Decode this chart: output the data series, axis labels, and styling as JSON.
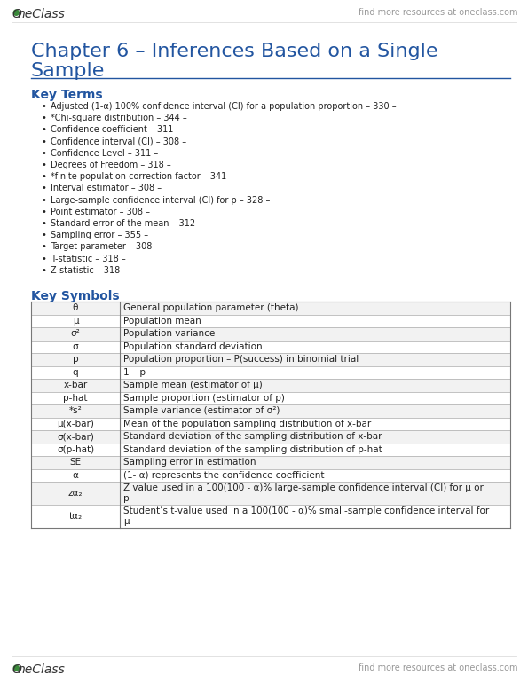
{
  "bg_color": "#ffffff",
  "header_text_left": "OneClass",
  "header_text_right": "find more resources at oneclass.com",
  "footer_text_left": "OneClass",
  "footer_text_right": "find more resources at oneclass.com",
  "section1_title": "Key Terms",
  "bullet_items": [
    "Adjusted (1-α) 100% confidence interval (CI) for a population proportion – 330 –",
    "*Chi-square distribution – 344 –",
    "Confidence coefficient – 311 –",
    "Confidence interval (CI) – 308 –",
    "Confidence Level – 311 –",
    "Degrees of Freedom – 318 –",
    "*finite population correction factor – 341 –",
    "Interval estimator – 308 –",
    "Large-sample confidence interval (CI) for p – 328 –",
    "Point estimator – 308 –",
    "Standard error of the mean – 312 –",
    "Sampling error – 355 –",
    "Target parameter – 308 –",
    "T-statistic – 318 –",
    "Z-statistic – 318 –"
  ],
  "section2_title": "Key Symbols",
  "table_rows": [
    [
      "θ",
      "General population parameter (theta)",
      1
    ],
    [
      "μ",
      "Population mean",
      1
    ],
    [
      "σ²",
      "Population variance",
      1
    ],
    [
      "σ",
      "Population standard deviation",
      1
    ],
    [
      "p",
      "Population proportion – P(success) in binomial trial",
      1
    ],
    [
      "q",
      "1 – p",
      1
    ],
    [
      "x-bar",
      "Sample mean (estimator of μ)",
      1
    ],
    [
      "p-hat",
      "Sample proportion (estimator of p)",
      1
    ],
    [
      "*s²",
      "Sample variance (estimator of σ²)",
      1
    ],
    [
      "μ(x-bar)",
      "Mean of the population sampling distribution of x-bar",
      1
    ],
    [
      "σ(x-bar)",
      "Standard deviation of the sampling distribution of x-bar",
      1
    ],
    [
      "σ(p-hat)",
      "Standard deviation of the sampling distribution of p-hat",
      1
    ],
    [
      "SE",
      "Sampling error in estimation",
      1
    ],
    [
      "α",
      "(1- α) represents the confidence coefficient",
      1
    ],
    [
      "zα₂",
      "Z value used in a 100(100 - α)% large-sample confidence interval (CI) for μ or\np",
      2
    ],
    [
      "tα₂",
      "Student’s t-value used in a 100(100 - α)% small-sample confidence interval for\nμ",
      2
    ]
  ],
  "title_color": "#2255a0",
  "section_title_color": "#2255a0",
  "text_color": "#222222",
  "header_color": "#888888",
  "line_color": "#2255a0",
  "table_border_color": "#aaaaaa",
  "oneclass_green": "#3a8a3a"
}
